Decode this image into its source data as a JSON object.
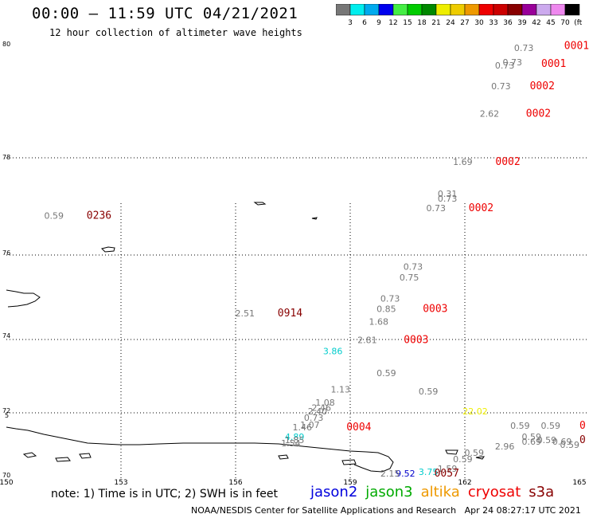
{
  "title": "00:00 – 11:59 UTC 04/21/2021",
  "subtitle": "12 hour collection of altimeter wave heights",
  "color_scale": {
    "labels": [
      "3",
      "6",
      "9",
      "12",
      "15",
      "18",
      "21",
      "24",
      "27",
      "30",
      "33",
      "36",
      "39",
      "42",
      "45",
      "70",
      "(ft)"
    ],
    "colors": [
      "#777777",
      "#00eeee",
      "#00aaee",
      "#0000ee",
      "#44ee44",
      "#00cc00",
      "#008800",
      "#eeee00",
      "#eecc00",
      "#ee9900",
      "#ee0000",
      "#cc0000",
      "#880000",
      "#990099",
      "#ccaaee",
      "#ee88ee",
      "#000000"
    ]
  },
  "axes": {
    "lon_labels": [
      "150",
      "153",
      "156",
      "159",
      "162",
      "165"
    ],
    "lat_labels": [
      "80",
      "78",
      "76",
      "74",
      "72",
      "70"
    ],
    "extra_lat_label": "5"
  },
  "points": [
    {
      "v": "0.73",
      "c": "#777777",
      "lon": 163.8,
      "lat": 79.94
    },
    {
      "v": "0.73",
      "c": "#777777",
      "lon": 163.3,
      "lat": 79.62
    },
    {
      "v": "0.73",
      "c": "#777777",
      "lon": 163.5,
      "lat": 79.68
    },
    {
      "v": "0.73",
      "c": "#777777",
      "lon": 163.2,
      "lat": 79.25
    },
    {
      "v": "2.62",
      "c": "#777777",
      "lon": 162.9,
      "lat": 78.75
    },
    {
      "v": "1.69",
      "c": "#777777",
      "lon": 162.2,
      "lat": 77.85
    },
    {
      "v": "0.31",
      "c": "#777777",
      "lon": 161.8,
      "lat": 77.2
    },
    {
      "v": "0.73",
      "c": "#777777",
      "lon": 161.8,
      "lat": 77.1
    },
    {
      "v": "0.73",
      "c": "#777777",
      "lon": 161.5,
      "lat": 76.9
    },
    {
      "v": "0.59",
      "c": "#777777",
      "lon": 151.5,
      "lat": 76.75
    },
    {
      "v": "0.73",
      "c": "#777777",
      "lon": 160.9,
      "lat": 75.65
    },
    {
      "v": "0.75",
      "c": "#777777",
      "lon": 160.8,
      "lat": 75.4
    },
    {
      "v": "0.73",
      "c": "#777777",
      "lon": 160.3,
      "lat": 74.9
    },
    {
      "v": "0.85",
      "c": "#777777",
      "lon": 160.2,
      "lat": 74.65
    },
    {
      "v": "2.51",
      "c": "#777777",
      "lon": 156.5,
      "lat": 74.55
    },
    {
      "v": "1.68",
      "c": "#777777",
      "lon": 160.0,
      "lat": 74.35
    },
    {
      "v": "2.81",
      "c": "#777777",
      "lon": 159.7,
      "lat": 73.9
    },
    {
      "v": "3.86",
      "c": "#00cccc",
      "lon": 158.8,
      "lat": 73.6
    },
    {
      "v": "0.59",
      "c": "#777777",
      "lon": 160.2,
      "lat": 73.0
    },
    {
      "v": "1.13",
      "c": "#777777",
      "lon": 159.0,
      "lat": 72.55
    },
    {
      "v": "0.59",
      "c": "#777777",
      "lon": 161.3,
      "lat": 72.5
    },
    {
      "v": "1.08",
      "c": "#777777",
      "lon": 158.6,
      "lat": 72.2
    },
    {
      "v": "2.46",
      "c": "#777777",
      "lon": 158.5,
      "lat": 72.05
    },
    {
      "v": "2.40",
      "c": "#777777",
      "lon": 158.4,
      "lat": 71.95
    },
    {
      "v": "22.02",
      "c": "#eeee00",
      "lon": 162.6,
      "lat": 71.95
    },
    {
      "v": "0.73",
      "c": "#777777",
      "lon": 158.3,
      "lat": 71.75
    },
    {
      "v": "1.07",
      "c": "#777777",
      "lon": 158.2,
      "lat": 71.52
    },
    {
      "v": "1.46",
      "c": "#777777",
      "lon": 158.0,
      "lat": 71.45
    },
    {
      "v": "0.59",
      "c": "#777777",
      "lon": 163.7,
      "lat": 71.5
    },
    {
      "v": "0.59",
      "c": "#777777",
      "lon": 164.5,
      "lat": 71.5
    },
    {
      "v": "0.59",
      "c": "#777777",
      "lon": 164.0,
      "lat": 71.15
    },
    {
      "v": "0.59",
      "c": "#777777",
      "lon": 164.4,
      "lat": 71.05
    },
    {
      "v": "0.69",
      "c": "#777777",
      "lon": 164.0,
      "lat": 71.0
    },
    {
      "v": "0.69",
      "c": "#777777",
      "lon": 164.8,
      "lat": 71.0
    },
    {
      "v": "0.59",
      "c": "#777777",
      "lon": 165.0,
      "lat": 70.9
    },
    {
      "v": "2.96",
      "c": "#777777",
      "lon": 163.3,
      "lat": 70.85
    },
    {
      "v": "4.89",
      "c": "#00cccc",
      "lon": 157.8,
      "lat": 71.15
    },
    {
      "v": "1.85",
      "c": "#777777",
      "lon": 157.8,
      "lat": 71.05
    },
    {
      "v": "1.54",
      "c": "#777777",
      "lon": 157.7,
      "lat": 70.95
    },
    {
      "v": "0.59",
      "c": "#777777",
      "lon": 162.5,
      "lat": 70.65
    },
    {
      "v": "0.59",
      "c": "#777777",
      "lon": 162.2,
      "lat": 70.45
    },
    {
      "v": "1.59",
      "c": "#777777",
      "lon": 161.8,
      "lat": 70.15
    },
    {
      "v": "3.75",
      "c": "#00cccc",
      "lon": 161.3,
      "lat": 70.05
    },
    {
      "v": "9.52",
      "c": "#0000cc",
      "lon": 160.7,
      "lat": 69.85
    },
    {
      "v": "2.15",
      "c": "#777777",
      "lon": 160.3,
      "lat": 69.7
    }
  ],
  "times": [
    {
      "t": "0001",
      "c": "#ee0000",
      "lon": 164.6,
      "lat": 79.98
    },
    {
      "t": "0001",
      "c": "#ee0000",
      "lon": 164.0,
      "lat": 79.65
    },
    {
      "t": "0002",
      "c": "#ee0000",
      "lon": 163.7,
      "lat": 79.25
    },
    {
      "t": "0002",
      "c": "#ee0000",
      "lon": 163.6,
      "lat": 78.75
    },
    {
      "t": "0002",
      "c": "#ee0000",
      "lon": 162.8,
      "lat": 77.85
    },
    {
      "t": "0002",
      "c": "#ee0000",
      "lon": 162.1,
      "lat": 76.9
    },
    {
      "t": "0236",
      "c": "#880000",
      "lon": 152.1,
      "lat": 76.75
    },
    {
      "t": "0914",
      "c": "#880000",
      "lon": 157.1,
      "lat": 74.55
    },
    {
      "t": "0003",
      "c": "#ee0000",
      "lon": 160.9,
      "lat": 74.65
    },
    {
      "t": "0003",
      "c": "#ee0000",
      "lon": 160.4,
      "lat": 73.9
    },
    {
      "t": "0004",
      "c": "#ee0000",
      "lon": 158.9,
      "lat": 71.45
    },
    {
      "t": "0057",
      "c": "#880000",
      "lon": 161.2,
      "lat": 69.7
    },
    {
      "t": "0",
      "c": "#ee0000",
      "lon": 165.0,
      "lat": 71.5
    },
    {
      "t": "0",
      "c": "#880000",
      "lon": 165.0,
      "lat": 71.05
    }
  ],
  "note": "note: 1) Time is in UTC; 2) SWH is in feet",
  "legend": [
    {
      "name": "jason2",
      "color": "#0000dd"
    },
    {
      "name": "jason3",
      "color": "#00aa00"
    },
    {
      "name": "altika",
      "color": "#ee9900"
    },
    {
      "name": "cryosat",
      "color": "#ee0000"
    },
    {
      "name": "s3a",
      "color": "#880000"
    }
  ],
  "footer_left": "NOAA/NESDIS Center for Satellite Applications and Research",
  "footer_right": "Apr 24 08:27:17 UTC 2021"
}
